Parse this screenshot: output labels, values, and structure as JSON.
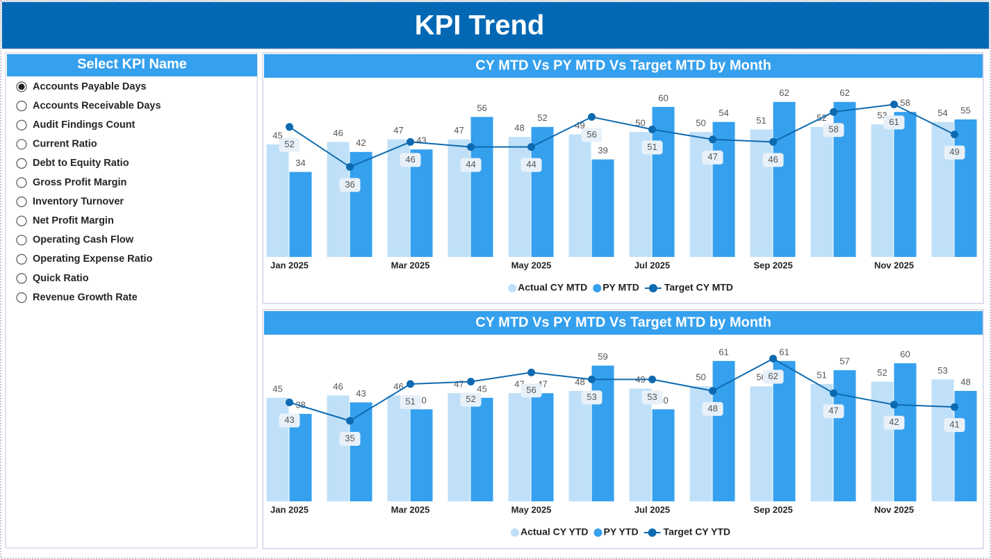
{
  "header": {
    "title": "KPI Trend"
  },
  "slicer": {
    "title": "Select KPI Name",
    "options": [
      "Accounts Payable Days",
      "Accounts Receivable Days",
      "Audit Findings Count",
      "Current Ratio",
      "Debt to Equity Ratio",
      "Gross Profit Margin",
      "Inventory Turnover",
      "Net Profit Margin",
      "Operating Cash Flow",
      "Operating Expense Ratio",
      "Quick Ratio",
      "Revenue Growth Rate"
    ],
    "selected": 0
  },
  "chart_data": [
    {
      "type": "combo",
      "title": "CY MTD Vs PY MTD Vs Target MTD by Month",
      "categories": [
        "Jan 2025",
        null,
        "Mar 2025",
        null,
        "May 2025",
        null,
        "Jul 2025",
        null,
        "Sep 2025",
        null,
        "Nov 2025",
        null
      ],
      "series": [
        {
          "name": "Actual CY MTD",
          "type": "bar",
          "color": "#bfe0f8",
          "values": [
            45,
            46,
            47,
            47,
            48,
            49,
            50,
            50,
            51,
            52,
            53,
            54
          ]
        },
        {
          "name": "PY MTD",
          "type": "bar",
          "color": "#35a0ee",
          "values": [
            34,
            42,
            43,
            56,
            52,
            39,
            60,
            54,
            62,
            62,
            58,
            55
          ]
        },
        {
          "name": "Target CY MTD",
          "type": "line",
          "color": "#0e6ab0",
          "values": [
            52,
            36,
            46,
            44,
            44,
            56,
            51,
            47,
            46,
            58,
            61,
            49
          ]
        }
      ],
      "ylim": [
        0,
        70
      ],
      "legend": "bottom"
    },
    {
      "type": "combo",
      "title": "CY MTD Vs PY MTD Vs Target MTD by Month",
      "categories": [
        "Jan 2025",
        null,
        "Mar 2025",
        null,
        "May 2025",
        null,
        "Jul 2025",
        null,
        "Sep 2025",
        null,
        "Nov 2025",
        null
      ],
      "series": [
        {
          "name": "Actual CY YTD",
          "type": "bar",
          "color": "#bfe0f8",
          "values": [
            45,
            46,
            46,
            47,
            47,
            48,
            49,
            50,
            50,
            51,
            52,
            53
          ]
        },
        {
          "name": "PY YTD",
          "type": "bar",
          "color": "#35a0ee",
          "values": [
            38,
            43,
            40,
            45,
            47,
            59,
            40,
            61,
            61,
            57,
            60,
            48
          ]
        },
        {
          "name": "Target CY YTD",
          "type": "line",
          "color": "#0e6ab0",
          "values": [
            43,
            35,
            51,
            52,
            56,
            53,
            53,
            48,
            62,
            47,
            42,
            41
          ]
        }
      ],
      "ylim": [
        0,
        70
      ],
      "legend": "bottom"
    }
  ]
}
